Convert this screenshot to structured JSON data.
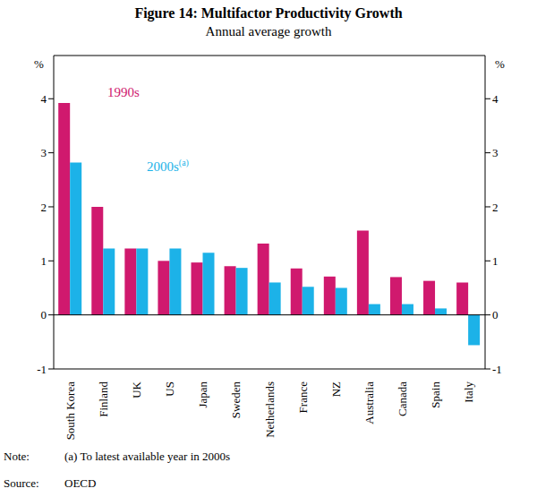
{
  "chart_data": {
    "type": "bar",
    "title": "Figure 14: Multifactor Productivity Growth",
    "subtitle": "Annual average growth",
    "y_label": "%",
    "categories": [
      "South Korea",
      "Finland",
      "UK",
      "US",
      "Japan",
      "Sweden",
      "Netherlands",
      "France",
      "NZ",
      "Australia",
      "Canada",
      "Spain",
      "Italy"
    ],
    "series": [
      {
        "name": "1990s",
        "color": "#d0196e",
        "values": [
          3.92,
          2.0,
          1.23,
          1.0,
          0.97,
          0.9,
          1.32,
          0.86,
          0.71,
          1.56,
          0.7,
          0.63,
          0.6
        ]
      },
      {
        "name": "2000s(a)",
        "color": "#1cb2e8",
        "values": [
          2.82,
          1.23,
          1.23,
          1.23,
          1.15,
          0.87,
          0.6,
          0.52,
          0.5,
          0.2,
          0.2,
          0.12,
          -0.56
        ]
      }
    ],
    "ylim": [
      -1,
      4.8
    ],
    "yticks": [
      -1,
      0,
      1,
      2,
      3,
      4
    ],
    "grid": false,
    "note": {
      "label": "Note:",
      "text": "(a) To latest available year in 2000s"
    },
    "source": {
      "label": "Source:",
      "text": "OECD"
    }
  }
}
